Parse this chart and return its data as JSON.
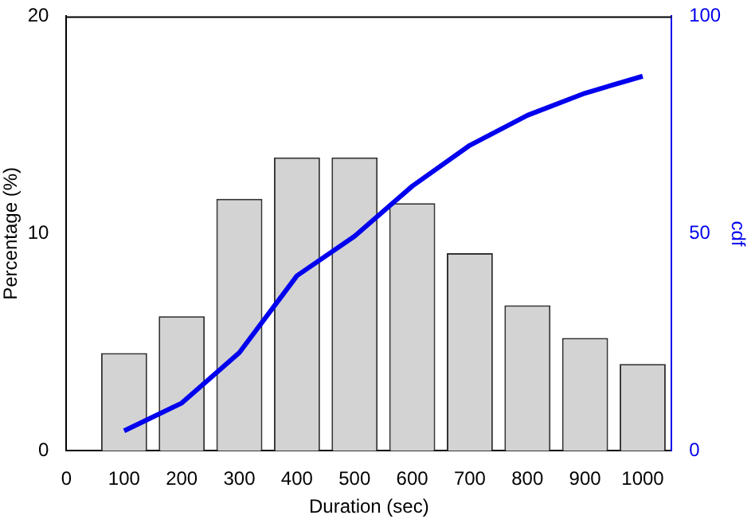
{
  "chart_data": {
    "type": "bar",
    "xlabel": "Duration (sec)",
    "ylabel": "Percentage (%)",
    "y2label": "cdf",
    "x": [
      100,
      200,
      300,
      400,
      500,
      600,
      700,
      800,
      900,
      1000
    ],
    "series": [
      {
        "color": "#d3d3d3",
        "values": [
          4.5,
          6.2,
          11.6,
          13.5,
          13.5,
          11.4,
          9.1,
          6.7,
          5.2,
          4.0
        ]
      },
      {
        "type": "line",
        "axis": "y2",
        "color": "#0000ee",
        "values": [
          4.6,
          11,
          22.6,
          40.3,
          49.4,
          60.9,
          70.3,
          77.2,
          82.3,
          86.2
        ]
      }
    ],
    "xlim": [
      0,
      1050
    ],
    "xticks": [
      0,
      100,
      200,
      300,
      400,
      500,
      600,
      700,
      800,
      900,
      1000
    ],
    "ylim": [
      0,
      20
    ],
    "yticks": [
      0,
      10,
      20
    ],
    "y2lim": [
      0,
      100
    ],
    "y2ticks": [
      0,
      50,
      100
    ],
    "grid": false,
    "legend": false
  }
}
